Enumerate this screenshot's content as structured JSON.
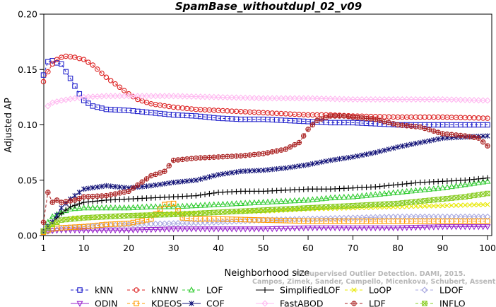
{
  "chart_data": {
    "type": "line",
    "title": "SpamBase_withoutdupl_02_v09",
    "xlabel": "Neighborhood size",
    "ylabel": "Adjusted AP",
    "xlim": [
      1,
      100
    ],
    "ylim": [
      0,
      0.2
    ],
    "x_ticks": [
      1,
      10,
      20,
      30,
      40,
      50,
      60,
      70,
      80,
      90,
      100
    ],
    "y_ticks": [
      "0.00",
      "0.05",
      "0.10",
      "0.15",
      "0.20"
    ],
    "grid": false,
    "legend_position": "bottom",
    "watermark": [
      "Unsupervised Outlier Detection. DAMI, 2015.",
      "Campos, Zimek, Sander, Campello, Micenkova, Schubert, Assent, Houle"
    ],
    "series": [
      {
        "name": "kNN",
        "color": "#2222cc",
        "marker": "square",
        "dash": "4,3",
        "points": [
          [
            1,
            0.145
          ],
          [
            2,
            0.157
          ],
          [
            3,
            0.158
          ],
          [
            4,
            0.156
          ],
          [
            5,
            0.155
          ],
          [
            6,
            0.148
          ],
          [
            7,
            0.142
          ],
          [
            8,
            0.135
          ],
          [
            9,
            0.128
          ],
          [
            10,
            0.122
          ],
          [
            12,
            0.117
          ],
          [
            15,
            0.114
          ],
          [
            20,
            0.113
          ],
          [
            25,
            0.111
          ],
          [
            30,
            0.109
          ],
          [
            35,
            0.108
          ],
          [
            40,
            0.106
          ],
          [
            45,
            0.105
          ],
          [
            50,
            0.105
          ],
          [
            55,
            0.104
          ],
          [
            60,
            0.103
          ],
          [
            65,
            0.102
          ],
          [
            70,
            0.102
          ],
          [
            75,
            0.101
          ],
          [
            80,
            0.1
          ],
          [
            85,
            0.1
          ],
          [
            90,
            0.1
          ],
          [
            95,
            0.1
          ],
          [
            100,
            0.1
          ]
        ]
      },
      {
        "name": "kNNW",
        "color": "#dd2222",
        "marker": "circle",
        "dash": "4,3",
        "points": [
          [
            1,
            0.139
          ],
          [
            2,
            0.148
          ],
          [
            3,
            0.155
          ],
          [
            4,
            0.159
          ],
          [
            5,
            0.161
          ],
          [
            6,
            0.162
          ],
          [
            8,
            0.161
          ],
          [
            10,
            0.159
          ],
          [
            12,
            0.154
          ],
          [
            15,
            0.143
          ],
          [
            18,
            0.134
          ],
          [
            20,
            0.128
          ],
          [
            22,
            0.123
          ],
          [
            25,
            0.119
          ],
          [
            30,
            0.116
          ],
          [
            35,
            0.114
          ],
          [
            40,
            0.113
          ],
          [
            45,
            0.112
          ],
          [
            50,
            0.111
          ],
          [
            55,
            0.11
          ],
          [
            60,
            0.109
          ],
          [
            65,
            0.109
          ],
          [
            70,
            0.108
          ],
          [
            80,
            0.107
          ],
          [
            90,
            0.107
          ],
          [
            100,
            0.106
          ]
        ]
      },
      {
        "name": "LOF",
        "color": "#33cc33",
        "marker": "triangle",
        "dash": "4,3",
        "points": [
          [
            1,
            0.004
          ],
          [
            2,
            0.012
          ],
          [
            3,
            0.017
          ],
          [
            5,
            0.021
          ],
          [
            7,
            0.024
          ],
          [
            10,
            0.025
          ],
          [
            15,
            0.025
          ],
          [
            20,
            0.025
          ],
          [
            25,
            0.026
          ],
          [
            30,
            0.026
          ],
          [
            35,
            0.027
          ],
          [
            40,
            0.028
          ],
          [
            45,
            0.029
          ],
          [
            50,
            0.03
          ],
          [
            55,
            0.031
          ],
          [
            60,
            0.032
          ],
          [
            65,
            0.034
          ],
          [
            70,
            0.035
          ],
          [
            75,
            0.037
          ],
          [
            80,
            0.039
          ],
          [
            85,
            0.041
          ],
          [
            90,
            0.043
          ],
          [
            95,
            0.046
          ],
          [
            100,
            0.049
          ]
        ]
      },
      {
        "name": "SimplifiedLOF",
        "color": "#000000",
        "marker": "plus",
        "dash": "",
        "points": [
          [
            1,
            0.004
          ],
          [
            3,
            0.012
          ],
          [
            5,
            0.02
          ],
          [
            7,
            0.026
          ],
          [
            10,
            0.03
          ],
          [
            15,
            0.032
          ],
          [
            20,
            0.033
          ],
          [
            25,
            0.034
          ],
          [
            30,
            0.035
          ],
          [
            35,
            0.036
          ],
          [
            40,
            0.039
          ],
          [
            45,
            0.04
          ],
          [
            50,
            0.04
          ],
          [
            55,
            0.041
          ],
          [
            60,
            0.042
          ],
          [
            65,
            0.042
          ],
          [
            70,
            0.043
          ],
          [
            75,
            0.044
          ],
          [
            80,
            0.046
          ],
          [
            85,
            0.048
          ],
          [
            90,
            0.049
          ],
          [
            95,
            0.05
          ],
          [
            100,
            0.052
          ]
        ]
      },
      {
        "name": "LoOP",
        "color": "#e8e800",
        "marker": "x",
        "dash": "4,3",
        "points": [
          [
            1,
            0.003
          ],
          [
            3,
            0.009
          ],
          [
            5,
            0.014
          ],
          [
            8,
            0.016
          ],
          [
            10,
            0.016
          ],
          [
            15,
            0.017
          ],
          [
            20,
            0.018
          ],
          [
            25,
            0.019
          ],
          [
            30,
            0.02
          ],
          [
            40,
            0.021
          ],
          [
            50,
            0.022
          ],
          [
            60,
            0.024
          ],
          [
            70,
            0.025
          ],
          [
            80,
            0.026
          ],
          [
            90,
            0.027
          ],
          [
            100,
            0.028
          ]
        ]
      },
      {
        "name": "LDOF",
        "color": "#a8a8e0",
        "marker": "diamond",
        "dash": "4,3",
        "points": [
          [
            1,
            0.003
          ],
          [
            5,
            0.006
          ],
          [
            10,
            0.008
          ],
          [
            15,
            0.009
          ],
          [
            20,
            0.01
          ],
          [
            30,
            0.011
          ],
          [
            40,
            0.012
          ],
          [
            50,
            0.014
          ],
          [
            60,
            0.015
          ],
          [
            70,
            0.016
          ],
          [
            80,
            0.017
          ],
          [
            90,
            0.017
          ],
          [
            100,
            0.017
          ]
        ]
      },
      {
        "name": "ODIN",
        "color": "#9922cc",
        "marker": "tridown",
        "dash": "",
        "points": [
          [
            1,
            0.004
          ],
          [
            5,
            0.005
          ],
          [
            10,
            0.005
          ],
          [
            20,
            0.005
          ],
          [
            30,
            0.006
          ],
          [
            40,
            0.006
          ],
          [
            50,
            0.006
          ],
          [
            60,
            0.007
          ],
          [
            70,
            0.007
          ],
          [
            80,
            0.007
          ],
          [
            90,
            0.008
          ],
          [
            100,
            0.008
          ]
        ]
      },
      {
        "name": "KDEOS",
        "color": "#ff9900",
        "marker": "square",
        "dash": "4,3",
        "points": [
          [
            1,
            0.003
          ],
          [
            3,
            0.006
          ],
          [
            5,
            0.007
          ],
          [
            10,
            0.008
          ],
          [
            15,
            0.01
          ],
          [
            20,
            0.011
          ],
          [
            25,
            0.015
          ],
          [
            28,
            0.028
          ],
          [
            30,
            0.029
          ],
          [
            32,
            0.016
          ],
          [
            35,
            0.015
          ],
          [
            40,
            0.015
          ],
          [
            50,
            0.014
          ],
          [
            60,
            0.013
          ],
          [
            70,
            0.013
          ],
          [
            80,
            0.013
          ],
          [
            90,
            0.013
          ],
          [
            100,
            0.013
          ]
        ]
      },
      {
        "name": "COF",
        "color": "#111177",
        "marker": "asterisk",
        "dash": "",
        "points": [
          [
            1,
            0.004
          ],
          [
            3,
            0.012
          ],
          [
            5,
            0.025
          ],
          [
            7,
            0.033
          ],
          [
            10,
            0.042
          ],
          [
            15,
            0.045
          ],
          [
            20,
            0.043
          ],
          [
            25,
            0.045
          ],
          [
            30,
            0.048
          ],
          [
            35,
            0.05
          ],
          [
            40,
            0.055
          ],
          [
            45,
            0.058
          ],
          [
            50,
            0.059
          ],
          [
            55,
            0.061
          ],
          [
            60,
            0.064
          ],
          [
            65,
            0.068
          ],
          [
            70,
            0.071
          ],
          [
            75,
            0.075
          ],
          [
            80,
            0.08
          ],
          [
            85,
            0.084
          ],
          [
            90,
            0.088
          ],
          [
            95,
            0.089
          ],
          [
            100,
            0.09
          ]
        ]
      },
      {
        "name": "FastABOD",
        "color": "#ffb8f0",
        "marker": "diamond",
        "dash": "",
        "points": [
          [
            2,
            0.117
          ],
          [
            3,
            0.12
          ],
          [
            5,
            0.122
          ],
          [
            8,
            0.124
          ],
          [
            10,
            0.125
          ],
          [
            15,
            0.126
          ],
          [
            20,
            0.126
          ],
          [
            30,
            0.126
          ],
          [
            40,
            0.125
          ],
          [
            50,
            0.124
          ],
          [
            60,
            0.124
          ],
          [
            70,
            0.123
          ],
          [
            80,
            0.123
          ],
          [
            90,
            0.123
          ],
          [
            100,
            0.122
          ]
        ]
      },
      {
        "name": "LDF",
        "color": "#aa2222",
        "marker": "crosscircle",
        "dash": "4,3",
        "points": [
          [
            1,
            0.012
          ],
          [
            2,
            0.039
          ],
          [
            3,
            0.03
          ],
          [
            4,
            0.032
          ],
          [
            5,
            0.03
          ],
          [
            8,
            0.032
          ],
          [
            10,
            0.035
          ],
          [
            15,
            0.036
          ],
          [
            20,
            0.04
          ],
          [
            25,
            0.054
          ],
          [
            28,
            0.058
          ],
          [
            30,
            0.068
          ],
          [
            35,
            0.07
          ],
          [
            40,
            0.071
          ],
          [
            45,
            0.072
          ],
          [
            50,
            0.074
          ],
          [
            55,
            0.078
          ],
          [
            58,
            0.084
          ],
          [
            60,
            0.096
          ],
          [
            62,
            0.104
          ],
          [
            65,
            0.108
          ],
          [
            68,
            0.108
          ],
          [
            70,
            0.107
          ],
          [
            75,
            0.105
          ],
          [
            80,
            0.1
          ],
          [
            85,
            0.098
          ],
          [
            90,
            0.092
          ],
          [
            95,
            0.09
          ],
          [
            98,
            0.088
          ],
          [
            100,
            0.081
          ]
        ]
      },
      {
        "name": "INFLO",
        "color": "#88cc22",
        "marker": "crossbox",
        "dash": "4,3",
        "points": [
          [
            1,
            0.004
          ],
          [
            3,
            0.01
          ],
          [
            5,
            0.014
          ],
          [
            10,
            0.016
          ],
          [
            15,
            0.017
          ],
          [
            20,
            0.018
          ],
          [
            30,
            0.019
          ],
          [
            40,
            0.021
          ],
          [
            50,
            0.023
          ],
          [
            60,
            0.025
          ],
          [
            70,
            0.027
          ],
          [
            80,
            0.029
          ],
          [
            85,
            0.031
          ],
          [
            90,
            0.033
          ],
          [
            95,
            0.035
          ],
          [
            100,
            0.038
          ]
        ]
      }
    ]
  }
}
